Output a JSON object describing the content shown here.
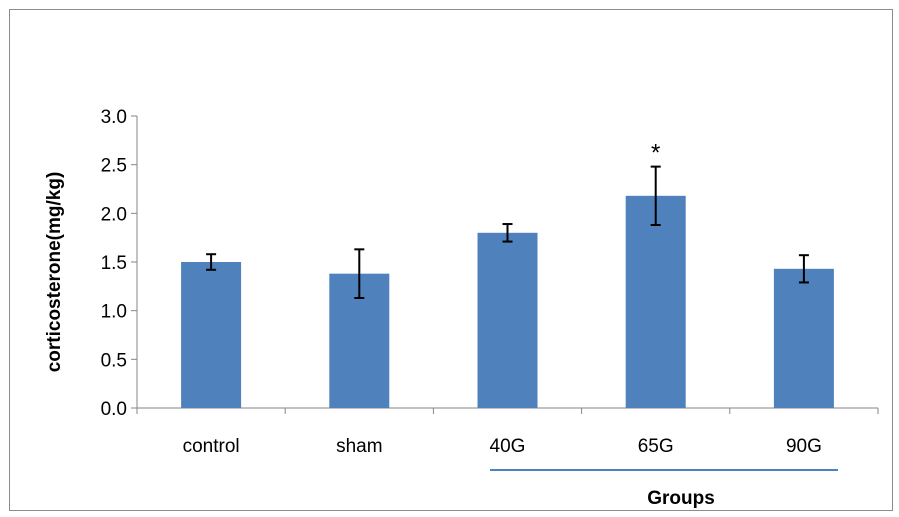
{
  "chart_data": {
    "type": "bar",
    "title": "",
    "xlabel": "Groups",
    "ylabel": "corticosterone(mg/kg)",
    "categories": [
      "control",
      "sham",
      "40G",
      "65G",
      "90G"
    ],
    "values": [
      1.5,
      1.38,
      1.8,
      2.18,
      1.43
    ],
    "error": [
      0.08,
      0.25,
      0.09,
      0.3,
      0.14
    ],
    "annotations": [
      {
        "category": "65G",
        "text": "*"
      }
    ],
    "ylim": [
      0,
      3.0
    ],
    "yticks": [
      "0.0",
      "0.5",
      "1.0",
      "1.5",
      "2.0",
      "2.5",
      "3.0"
    ],
    "grid": false,
    "legend": "none",
    "colors": {
      "bar": "#4f81bd",
      "axis": "#868686",
      "xlabel_underline": "#4f81bd",
      "error": "#000000"
    }
  }
}
